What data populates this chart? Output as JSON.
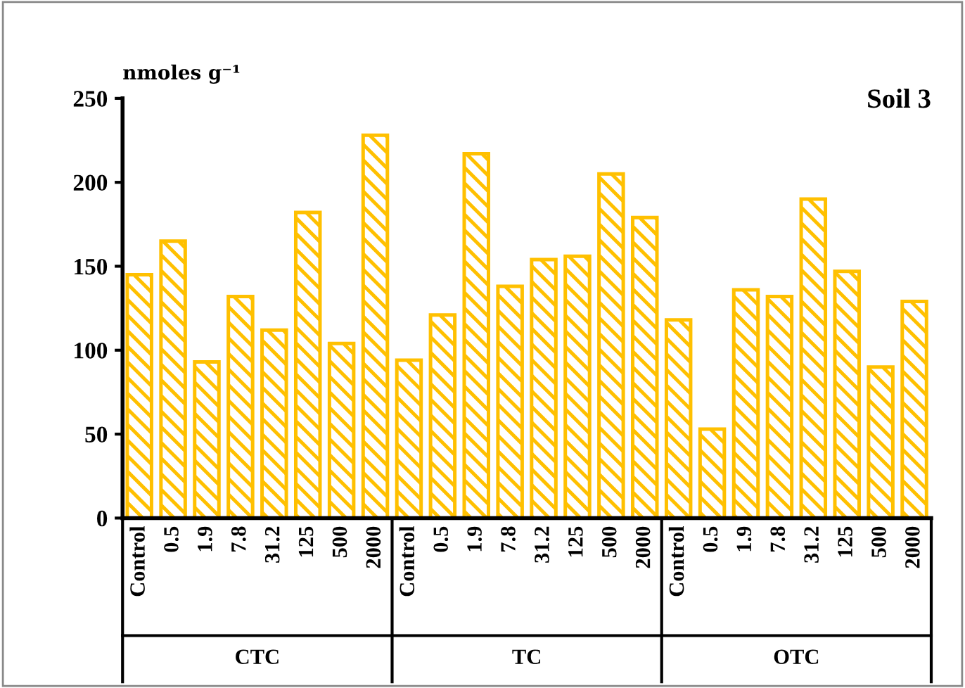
{
  "chart_data": {
    "type": "bar",
    "title": "Soil 3",
    "ylabel": "nmoles g⁻¹",
    "categories": [
      "Control",
      "0.5",
      "1.9",
      "7.8",
      "31.2",
      "125",
      "500",
      "2000",
      "Control",
      "0.5",
      "1.9",
      "7.8",
      "31.2",
      "125",
      "500",
      "2000",
      "Control",
      "0.5",
      "1.9",
      "7.8",
      "31.2",
      "125",
      "500",
      "2000"
    ],
    "values": [
      145,
      165,
      93,
      132,
      112,
      182,
      104,
      228,
      94,
      121,
      217,
      138,
      154,
      156,
      205,
      179,
      118,
      53,
      136,
      132,
      190,
      147,
      90,
      129
    ],
    "color": "#ffc000",
    "annotations": [
      "CTC",
      "TC",
      "OTC"
    ],
    "ylim": [
      0,
      250
    ],
    "yticks": [
      0,
      50,
      100,
      150,
      200,
      250
    ],
    "grid": false
  }
}
